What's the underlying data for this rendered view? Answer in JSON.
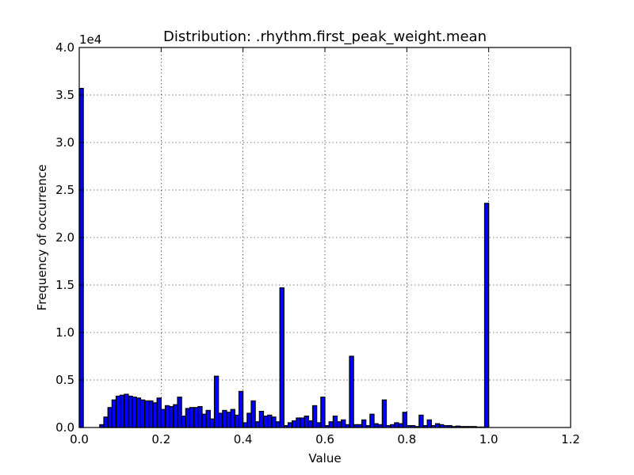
{
  "chart_data": {
    "type": "histogram",
    "title": "Distribution: .rhythm.first_peak_weight.mean",
    "xlabel": "Value",
    "ylabel": "Frequency of occurrence",
    "y_offset_label": "1e4",
    "xlim": [
      0.0,
      1.2
    ],
    "ylim": [
      0,
      40000
    ],
    "x_ticks": [
      "0.0",
      "0.2",
      "0.4",
      "0.6",
      "0.8",
      "1.0",
      "1.2"
    ],
    "y_ticks": [
      "0.0",
      "0.5",
      "1.0",
      "1.5",
      "2.0",
      "2.5",
      "3.0",
      "3.5",
      "4.0"
    ],
    "grid": true,
    "bar_color": "#0000ff",
    "bin_width": 0.01,
    "bin_start": 0.0,
    "values": [
      35700,
      0,
      0,
      0,
      0,
      300,
      1100,
      2100,
      2900,
      3300,
      3400,
      3500,
      3300,
      3200,
      3100,
      2900,
      2800,
      2800,
      2600,
      3100,
      1900,
      2300,
      2200,
      2400,
      3200,
      1200,
      2000,
      2100,
      2100,
      2200,
      1400,
      1800,
      900,
      5400,
      1500,
      1800,
      1600,
      1900,
      1300,
      3800,
      500,
      1500,
      2800,
      600,
      1700,
      1200,
      1300,
      1100,
      600,
      14700,
      200,
      500,
      700,
      1000,
      1000,
      1200,
      700,
      2300,
      500,
      3200,
      200,
      600,
      1200,
      600,
      800,
      300,
      7500,
      300,
      300,
      800,
      200,
      1400,
      400,
      300,
      2900,
      200,
      300,
      500,
      400,
      1600,
      200,
      200,
      100,
      1300,
      200,
      800,
      200,
      400,
      300,
      200,
      200,
      100,
      150,
      100,
      100,
      100,
      100,
      50,
      50,
      23600
    ]
  }
}
